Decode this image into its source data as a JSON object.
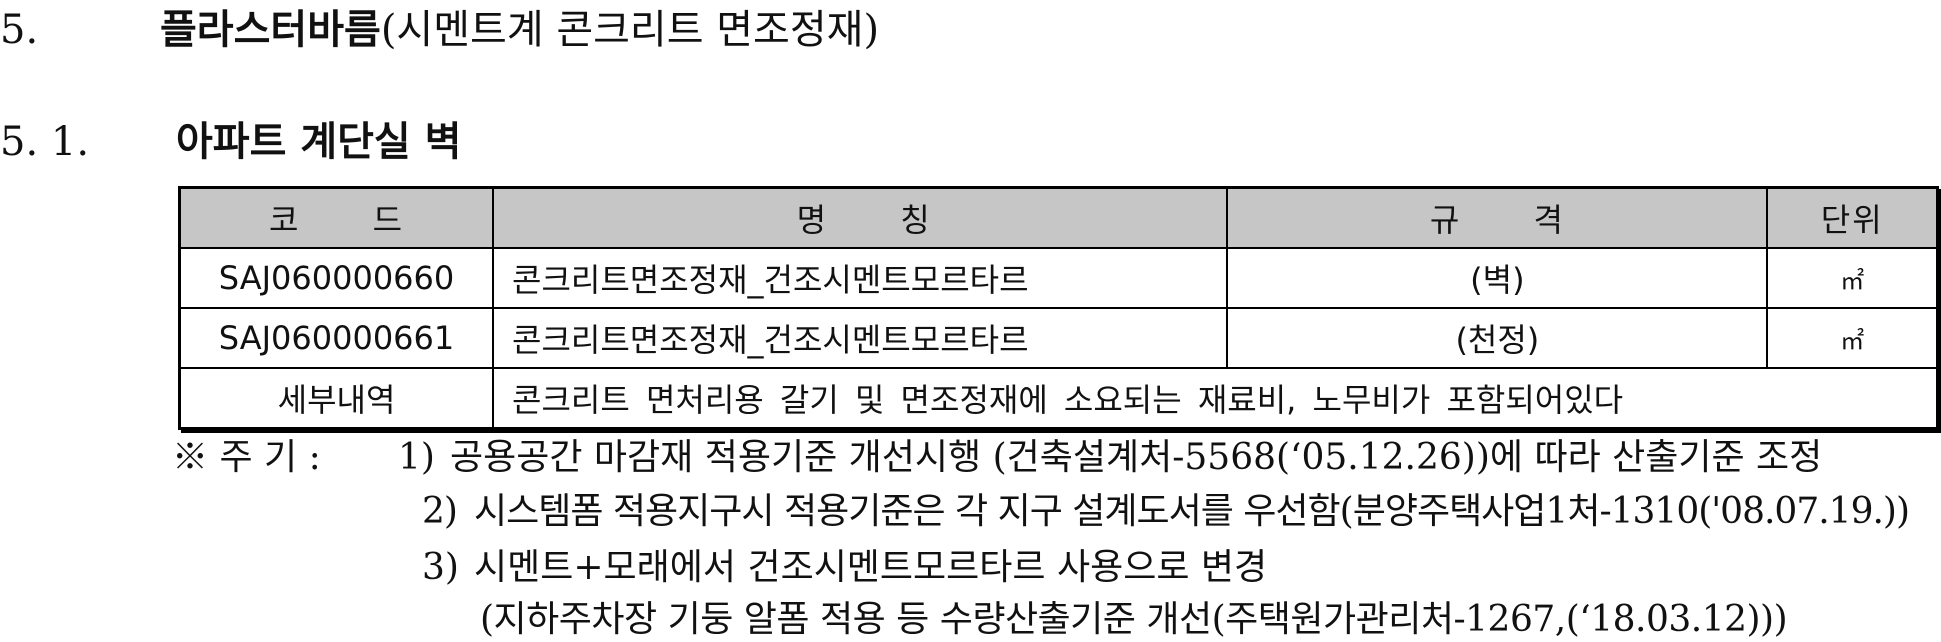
{
  "section": {
    "number": "5.",
    "title_bold": "플라스터바름",
    "title_rest": "(시멘트계 콘크리트 면조정재)"
  },
  "subsection": {
    "number": "5. 1.",
    "title": "아파트 계단실 벽"
  },
  "table": {
    "headers": {
      "code": "코 드",
      "name": "명 칭",
      "spec": "규 격",
      "unit": "단위"
    },
    "rows": [
      {
        "code": "SAJ060000660",
        "name": "콘크리트면조정재_건조시멘트모르타르",
        "spec": "(벽)",
        "unit": "㎡"
      },
      {
        "code": "SAJ060000661",
        "name": "콘크리트면조정재_건조시멘트모르타르",
        "spec": "(천정)",
        "unit": "㎡"
      }
    ],
    "detail_label": "세부내역",
    "detail_text": "콘크리트 면처리용 갈기 및 면조정재에 소요되는 재료비, 노무비가 포함되어있다"
  },
  "notes": {
    "prefix": "※ 주 기 :",
    "items": [
      {
        "mark": "1)",
        "text": "공용공간 마감재 적용기준 개선시행 (건축설계처-5568(‘05.12.26))에 따라 산출기준 조정"
      },
      {
        "mark": "2)",
        "text": "시스템폼 적용지구시 적용기준은 각 지구 설계도서를 우선함(분양주택사업1처-1310('08.07.19.))"
      },
      {
        "mark": "3)",
        "text": "시멘트+모래에서 건조시멘트모르타르 사용으로 변경"
      }
    ],
    "continuation": "(지하주차장 기둥 알폼 적용 등 수량산출기준 개선(주택원가관리처-1267,(‘18.03.12)))"
  }
}
